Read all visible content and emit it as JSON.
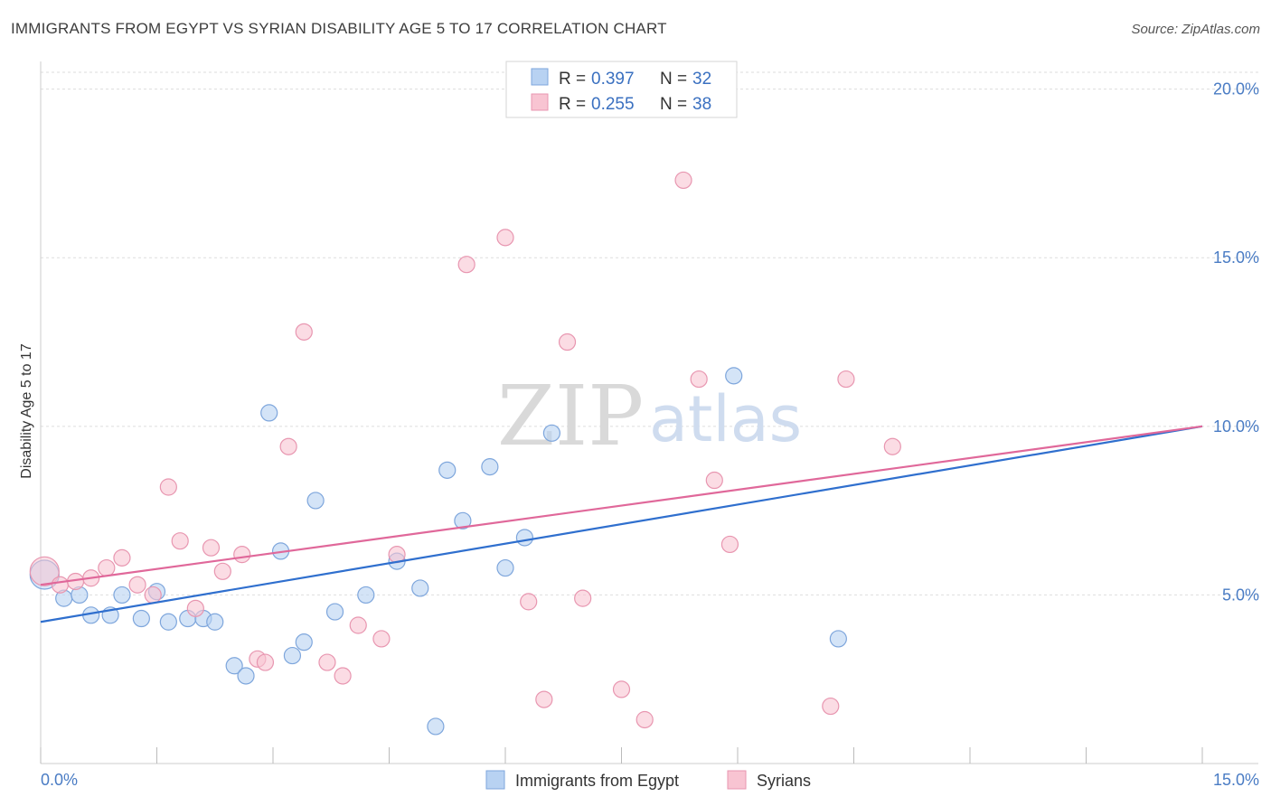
{
  "title": "IMMIGRANTS FROM EGYPT VS SYRIAN DISABILITY AGE 5 TO 17 CORRELATION CHART",
  "source": "Source: ZipAtlas.com",
  "watermark": {
    "zip": "ZIP",
    "atlas": "atlas"
  },
  "colors": {
    "blue_fill": "#b8d2f2",
    "blue_stroke": "#7ea6dc",
    "blue_line": "#2f6fce",
    "pink_fill": "#f8c4d2",
    "pink_stroke": "#e896b0",
    "pink_line": "#e0689a",
    "grid": "#dddddd",
    "tick_text": "#4a7cc4"
  },
  "legend": {
    "rows": [
      {
        "r_label": "R =",
        "r_value": "0.397",
        "n_label": "N =",
        "n_value": "32"
      },
      {
        "r_label": "R =",
        "r_value": "0.255",
        "n_label": "N =",
        "n_value": "38"
      }
    ]
  },
  "chart_data": {
    "type": "scatter",
    "title": "IMMIGRANTS FROM EGYPT VS SYRIAN DISABILITY AGE 5 TO 17 CORRELATION CHART",
    "xlabel": "",
    "ylabel": "Disability Age 5 to 17",
    "xlim": [
      0,
      15
    ],
    "ylim": [
      0,
      20.5
    ],
    "x_tick_labels": [
      "0.0%",
      "15.0%"
    ],
    "y_ticks": [
      5,
      10,
      15,
      20
    ],
    "y_tick_labels": [
      "5.0%",
      "10.0%",
      "15.0%",
      "20.0%"
    ],
    "grid": true,
    "legend_position": "top-center",
    "series": [
      {
        "name": "Immigrants from Egypt",
        "color": "#b8d2f2",
        "R": 0.397,
        "N": 32,
        "trend": {
          "x": [
            0,
            15
          ],
          "y": [
            4.2,
            10.0
          ]
        },
        "points": [
          {
            "x": 0.05,
            "y": 5.6,
            "big": true
          },
          {
            "x": 0.3,
            "y": 4.9
          },
          {
            "x": 0.5,
            "y": 5.0
          },
          {
            "x": 0.65,
            "y": 4.4
          },
          {
            "x": 0.9,
            "y": 4.4
          },
          {
            "x": 1.05,
            "y": 5.0
          },
          {
            "x": 1.3,
            "y": 4.3
          },
          {
            "x": 1.5,
            "y": 5.1
          },
          {
            "x": 1.65,
            "y": 4.2
          },
          {
            "x": 1.9,
            "y": 4.3
          },
          {
            "x": 2.1,
            "y": 4.3
          },
          {
            "x": 2.25,
            "y": 4.2
          },
          {
            "x": 2.5,
            "y": 2.9
          },
          {
            "x": 2.65,
            "y": 2.6
          },
          {
            "x": 2.95,
            "y": 10.4
          },
          {
            "x": 3.1,
            "y": 6.3
          },
          {
            "x": 3.25,
            "y": 3.2
          },
          {
            "x": 3.4,
            "y": 3.6
          },
          {
            "x": 3.55,
            "y": 7.8
          },
          {
            "x": 3.8,
            "y": 4.5
          },
          {
            "x": 4.2,
            "y": 5.0
          },
          {
            "x": 4.6,
            "y": 6.0
          },
          {
            "x": 4.9,
            "y": 5.2
          },
          {
            "x": 5.1,
            "y": 1.1
          },
          {
            "x": 5.25,
            "y": 8.7
          },
          {
            "x": 5.45,
            "y": 7.2
          },
          {
            "x": 5.8,
            "y": 8.8
          },
          {
            "x": 6.0,
            "y": 5.8
          },
          {
            "x": 6.25,
            "y": 6.7
          },
          {
            "x": 6.6,
            "y": 9.8
          },
          {
            "x": 8.95,
            "y": 11.5
          },
          {
            "x": 10.3,
            "y": 3.7
          }
        ]
      },
      {
        "name": "Syrians",
        "color": "#f8c4d2",
        "R": 0.255,
        "N": 38,
        "trend": {
          "x": [
            0,
            15
          ],
          "y": [
            5.3,
            10.0
          ]
        },
        "points": [
          {
            "x": 0.05,
            "y": 5.7,
            "big": true
          },
          {
            "x": 0.25,
            "y": 5.3
          },
          {
            "x": 0.45,
            "y": 5.4
          },
          {
            "x": 0.65,
            "y": 5.5
          },
          {
            "x": 0.85,
            "y": 5.8
          },
          {
            "x": 1.05,
            "y": 6.1
          },
          {
            "x": 1.25,
            "y": 5.3
          },
          {
            "x": 1.45,
            "y": 5.0
          },
          {
            "x": 1.65,
            "y": 8.2
          },
          {
            "x": 1.8,
            "y": 6.6
          },
          {
            "x": 2.0,
            "y": 4.6
          },
          {
            "x": 2.2,
            "y": 6.4
          },
          {
            "x": 2.35,
            "y": 5.7
          },
          {
            "x": 2.6,
            "y": 6.2
          },
          {
            "x": 2.8,
            "y": 3.1
          },
          {
            "x": 2.9,
            "y": 3.0
          },
          {
            "x": 3.2,
            "y": 9.4
          },
          {
            "x": 3.4,
            "y": 12.8
          },
          {
            "x": 3.7,
            "y": 3.0
          },
          {
            "x": 3.9,
            "y": 2.6
          },
          {
            "x": 4.1,
            "y": 4.1
          },
          {
            "x": 4.4,
            "y": 3.7
          },
          {
            "x": 4.6,
            "y": 6.2
          },
          {
            "x": 5.5,
            "y": 14.8
          },
          {
            "x": 6.0,
            "y": 15.6
          },
          {
            "x": 6.3,
            "y": 4.8
          },
          {
            "x": 6.5,
            "y": 1.9
          },
          {
            "x": 6.8,
            "y": 12.5
          },
          {
            "x": 7.0,
            "y": 4.9
          },
          {
            "x": 7.5,
            "y": 2.2
          },
          {
            "x": 7.8,
            "y": 1.3
          },
          {
            "x": 8.3,
            "y": 17.3
          },
          {
            "x": 8.5,
            "y": 11.4
          },
          {
            "x": 8.7,
            "y": 8.4
          },
          {
            "x": 8.9,
            "y": 6.5
          },
          {
            "x": 10.2,
            "y": 1.7
          },
          {
            "x": 10.4,
            "y": 11.4
          },
          {
            "x": 11.0,
            "y": 9.4
          }
        ]
      }
    ]
  }
}
